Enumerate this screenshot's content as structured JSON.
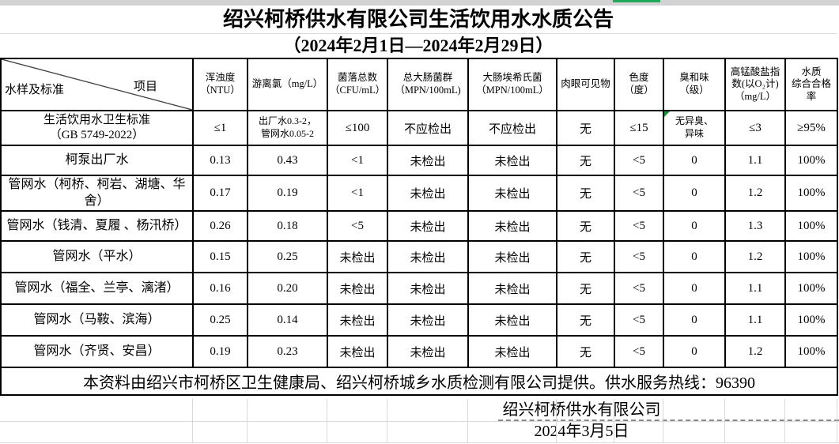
{
  "title": "绍兴柯桥供水有限公司生活饮用水水质公告",
  "subtitle": "（2024年2月1日—2024年2月29日）",
  "table": {
    "corner": {
      "top": "项目",
      "bottom": "水样及标准"
    },
    "headers": [
      "浑浊度\n（NTU）",
      "游离氯（mg/L）",
      "菌落总数\n（CFU/mL）",
      "总大肠菌群\n（MPN/100mL)",
      "大肠埃希氏菌\n（MPN/100mL）",
      "肉眼可见物",
      "色度\n（度）",
      "臭和味\n（级）",
      "高锰酸盐指\n数(以O₂计)\n（mg/L）",
      "水质\n综合合格率"
    ],
    "rows": [
      {
        "label": "生活饮用水卫生标准\n（GB 5749-2022）",
        "values": [
          "≤1",
          "出厂水0.3-2，\n管网水0.05-2",
          "≤100",
          "不应检出",
          "不应检出",
          "无",
          "≤15",
          "无异臭、\n异味",
          "≤3",
          "≥95%"
        ]
      },
      {
        "label": "柯泵出厂水",
        "values": [
          "0.13",
          "0.43",
          "<1",
          "未检出",
          "未检出",
          "无",
          "<5",
          "0",
          "1.1",
          "100%"
        ]
      },
      {
        "label": "管网水（柯桥、柯岩、湖塘、华舍）",
        "values": [
          "0.17",
          "0.19",
          "<1",
          "未检出",
          "未检出",
          "无",
          "<5",
          "0",
          "1.2",
          "100%"
        ]
      },
      {
        "label": "管网水（钱清、夏履 、杨汛桥）",
        "values": [
          "0.26",
          "0.18",
          "<5",
          "未检出",
          "未检出",
          "无",
          "<5",
          "0",
          "1.3",
          "100%"
        ]
      },
      {
        "label": "管网水（平水）",
        "values": [
          "0.15",
          "0.25",
          "未检出",
          "未检出",
          "未检出",
          "无",
          "<5",
          "0",
          "1.2",
          "100%"
        ]
      },
      {
        "label": "管网水（福全、兰亭、漓渚）",
        "values": [
          "0.16",
          "0.20",
          "未检出",
          "未检出",
          "未检出",
          "无",
          "<5",
          "0",
          "1.1",
          "100%"
        ]
      },
      {
        "label": "管网水（马鞍、滨海）",
        "values": [
          "0.25",
          "0.14",
          "未检出",
          "未检出",
          "未检出",
          "无",
          "<5",
          "0",
          "1.1",
          "100%"
        ]
      },
      {
        "label": "管网水（齐贤、安昌）",
        "values": [
          "0.19",
          "0.23",
          "未检出",
          "未检出",
          "未检出",
          "无",
          "<5",
          "0",
          "1.2",
          "100%"
        ]
      }
    ],
    "flag": {
      "row": 0,
      "value_index": 7
    },
    "note": "本资料由绍兴市柯桥区卫生健康局、绍兴柯桥城乡水质检测有限公司提供。供水服务热线：96390"
  },
  "signature": {
    "company": "绍兴柯桥供水有限公司",
    "date": "2024年3月5日"
  },
  "colors": {
    "table_border": "#000000",
    "gridline": "#d9d9d9",
    "chrome_gray": "#d2d2d2",
    "accent_green": "#21a85c",
    "flag_green": "#1e8e3e"
  }
}
